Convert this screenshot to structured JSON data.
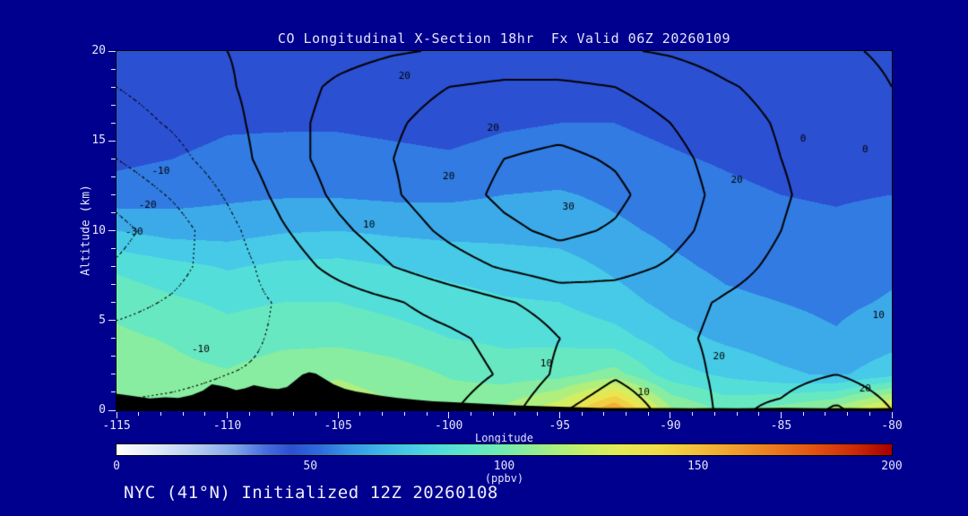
{
  "title": "CO Longitudinal X-Section 18hr  Fx Valid 06Z 20260109",
  "footer": "NYC (41°N) Initialized 12Z 20260108",
  "colors": {
    "background": "#00008f",
    "text": "#e4e4fa",
    "contour_line": "#000000",
    "terrain": "#000000"
  },
  "axes": {
    "x": {
      "label": "Longitude",
      "range": [
        -115,
        -80
      ],
      "ticks": [
        -115,
        -110,
        -105,
        -100,
        -95,
        -90,
        -85,
        -80
      ]
    },
    "y": {
      "label": "Altitude (km)",
      "range": [
        0,
        20
      ],
      "ticks": [
        0,
        5,
        10,
        15,
        20
      ]
    }
  },
  "colorbar": {
    "label": "(ppbv)",
    "range": [
      0,
      200
    ],
    "ticks": [
      0,
      50,
      100,
      150,
      200
    ]
  },
  "chart_data": {
    "type": "heatmap",
    "title": "CO Longitudinal X-Section 18hr  Fx Valid 06Z 20260109",
    "xlabel": "Longitude",
    "ylabel": "Altitude (km)",
    "xlim": [
      -115,
      -80
    ],
    "ylim": [
      0,
      20
    ],
    "fill_units": "ppbv",
    "fill_range": [
      0,
      200
    ],
    "fill_band_step": 10,
    "grid_lons": [
      -115,
      -112.5,
      -110,
      -107.5,
      -105,
      -102.5,
      -100,
      -97.5,
      -95,
      -92.5,
      -90,
      -87.5,
      -85,
      -82.5,
      -80
    ],
    "grid_alts": [
      0,
      2,
      4,
      6,
      8,
      10,
      12,
      14,
      16,
      18,
      20
    ],
    "co_fill": [
      [
        102,
        106,
        111,
        114,
        116,
        112,
        107,
        112,
        128,
        162,
        112,
        98,
        104,
        114,
        138
      ],
      [
        106,
        103,
        101,
        106,
        109,
        105,
        99,
        95,
        96,
        104,
        84,
        78,
        72,
        68,
        76
      ],
      [
        102,
        99,
        94,
        97,
        97,
        94,
        90,
        88,
        88,
        84,
        74,
        68,
        64,
        61,
        66
      ],
      [
        97,
        92,
        88,
        90,
        90,
        87,
        84,
        81,
        80,
        74,
        67,
        62,
        60,
        58,
        61
      ],
      [
        88,
        83,
        79,
        82,
        83,
        80,
        77,
        75,
        74,
        68,
        62,
        58,
        56,
        55,
        58
      ],
      [
        70,
        66,
        66,
        69,
        70,
        68,
        67,
        67,
        66,
        62,
        58,
        55,
        53,
        52,
        54
      ],
      [
        54,
        56,
        58,
        59,
        59,
        58,
        58,
        60,
        61,
        58,
        55,
        52,
        50,
        49,
        50
      ],
      [
        48,
        50,
        52,
        53,
        53,
        52,
        51,
        53,
        54,
        53,
        51,
        49,
        47,
        46,
        47
      ],
      [
        45,
        47,
        49,
        49,
        49,
        48,
        47,
        49,
        50,
        50,
        48,
        46,
        45,
        44,
        44
      ],
      [
        43,
        45,
        47,
        47,
        47,
        46,
        45,
        46,
        47,
        47,
        46,
        45,
        43,
        42,
        42
      ],
      [
        41,
        43,
        44,
        44,
        44,
        43,
        42,
        43,
        44,
        44,
        44,
        42,
        41,
        40,
        40
      ]
    ],
    "contour_overlay": {
      "color": "#000000",
      "levels": [
        -30,
        -20,
        -10,
        0,
        10,
        20,
        30,
        40
      ],
      "negative_style": "dotted",
      "positive_style": "solid",
      "values": [
        [
          -9,
          -8,
          -7,
          -6,
          -5,
          -4,
          -1,
          6,
          19,
          26,
          17,
          8,
          12,
          22,
          10
        ],
        [
          -13,
          -12,
          -10,
          -9,
          -8,
          -6,
          -4,
          1,
          12,
          19,
          14,
          8,
          6,
          10,
          4
        ],
        [
          -17,
          -15,
          -12,
          -9,
          -7,
          -5,
          -2,
          3,
          10,
          14,
          12,
          8,
          5,
          2,
          0
        ],
        [
          -23,
          -19,
          -14,
          -9,
          -5,
          -1,
          4,
          9,
          14,
          15,
          13,
          9,
          6,
          3,
          1
        ],
        [
          -29,
          -23,
          -15,
          -5,
          3,
          10,
          16,
          21,
          25,
          23,
          19,
          13,
          8,
          4,
          2
        ],
        [
          -33,
          -25,
          -13,
          -1,
          8,
          15,
          22,
          28,
          32,
          29,
          23,
          16,
          10,
          5,
          2
        ],
        [
          -27,
          -19,
          -9,
          3,
          12,
          19,
          26,
          32,
          36,
          32,
          25,
          17,
          11,
          6,
          2
        ],
        [
          -20,
          -13,
          -5,
          6,
          14,
          20,
          25,
          30,
          32,
          29,
          23,
          16,
          10,
          6,
          2
        ],
        [
          -14,
          -9,
          -3,
          6,
          14,
          19,
          23,
          26,
          27,
          25,
          20,
          14,
          9,
          5,
          1
        ],
        [
          -10,
          -6,
          -1,
          5,
          12,
          17,
          20,
          22,
          22,
          20,
          16,
          11,
          7,
          3,
          0
        ],
        [
          -6,
          -3,
          0,
          3,
          6,
          9,
          11,
          12,
          12,
          11,
          9,
          6,
          3,
          1,
          -1
        ]
      ]
    },
    "contour_labels": [
      {
        "text": "-10",
        "lon": -113.0,
        "alt": 13.3
      },
      {
        "text": "-20",
        "lon": -113.6,
        "alt": 11.4
      },
      {
        "text": "-30",
        "lon": -114.2,
        "alt": 9.9
      },
      {
        "text": "-10",
        "lon": -111.2,
        "alt": 3.4
      },
      {
        "text": "20",
        "lon": -102.0,
        "alt": 18.6
      },
      {
        "text": "20",
        "lon": -98.0,
        "alt": 15.7
      },
      {
        "text": "20",
        "lon": -100.0,
        "alt": 13.0
      },
      {
        "text": "30",
        "lon": -94.6,
        "alt": 11.3
      },
      {
        "text": "10",
        "lon": -103.6,
        "alt": 10.3
      },
      {
        "text": "20",
        "lon": -87.0,
        "alt": 12.8
      },
      {
        "text": "0",
        "lon": -84.0,
        "alt": 15.1
      },
      {
        "text": "0",
        "lon": -81.2,
        "alt": 14.5
      },
      {
        "text": "10",
        "lon": -80.6,
        "alt": 5.3
      },
      {
        "text": "20",
        "lon": -87.8,
        "alt": 3.0
      },
      {
        "text": "10",
        "lon": -91.2,
        "alt": 1.0
      },
      {
        "text": "10",
        "lon": -95.6,
        "alt": 2.6
      },
      {
        "text": "20",
        "lon": -81.2,
        "alt": 1.2
      }
    ],
    "terrain_profile": {
      "lons": [
        -115,
        -114.2,
        -113.5,
        -112.8,
        -112.2,
        -111.6,
        -111.1,
        -110.7,
        -110.4,
        -110,
        -109.6,
        -109.2,
        -108.8,
        -108.5,
        -108.1,
        -107.7,
        -107.3,
        -106.9,
        -106.6,
        -106.3,
        -106,
        -105.6,
        -105.2,
        -104.7,
        -104.2,
        -103.6,
        -103,
        -102.3,
        -101.5,
        -100.7,
        -100,
        -99,
        -98,
        -97,
        -96,
        -95,
        -94,
        -93,
        -92,
        -91,
        -90,
        -89,
        -88,
        -87,
        -86,
        -85,
        -84,
        -83,
        -82,
        -81,
        -80
      ],
      "elev_km": [
        0.92,
        0.78,
        0.66,
        0.72,
        0.68,
        0.85,
        1.1,
        1.45,
        1.38,
        1.28,
        1.12,
        1.22,
        1.4,
        1.32,
        1.22,
        1.18,
        1.3,
        1.7,
        2.0,
        2.12,
        2.05,
        1.75,
        1.45,
        1.2,
        1.05,
        0.92,
        0.8,
        0.68,
        0.58,
        0.5,
        0.46,
        0.4,
        0.34,
        0.28,
        0.24,
        0.2,
        0.16,
        0.13,
        0.12,
        0.13,
        0.12,
        0.11,
        0.12,
        0.11,
        0.12,
        0.14,
        0.12,
        0.11,
        0.12,
        0.11,
        0.12
      ]
    },
    "colormap_stops": [
      {
        "v": 0,
        "c": "#ffffff"
      },
      {
        "v": 10,
        "c": "#e0eafa"
      },
      {
        "v": 20,
        "c": "#b8cff4"
      },
      {
        "v": 30,
        "c": "#84a8ec"
      },
      {
        "v": 38,
        "c": "#4a6fe0"
      },
      {
        "v": 45,
        "c": "#2b50d2"
      },
      {
        "v": 52,
        "c": "#2e6ade"
      },
      {
        "v": 60,
        "c": "#3797e8"
      },
      {
        "v": 70,
        "c": "#41bce9"
      },
      {
        "v": 80,
        "c": "#4bd7e4"
      },
      {
        "v": 90,
        "c": "#5ce5d0"
      },
      {
        "v": 100,
        "c": "#74ebb2"
      },
      {
        "v": 110,
        "c": "#9bef8e"
      },
      {
        "v": 120,
        "c": "#c4ef6d"
      },
      {
        "v": 130,
        "c": "#e3ec57"
      },
      {
        "v": 140,
        "c": "#f0dc48"
      },
      {
        "v": 150,
        "c": "#f2bf3b"
      },
      {
        "v": 160,
        "c": "#f09e2d"
      },
      {
        "v": 170,
        "c": "#eb7820"
      },
      {
        "v": 180,
        "c": "#e25213"
      },
      {
        "v": 190,
        "c": "#ce2c09"
      },
      {
        "v": 200,
        "c": "#a80000"
      }
    ]
  }
}
